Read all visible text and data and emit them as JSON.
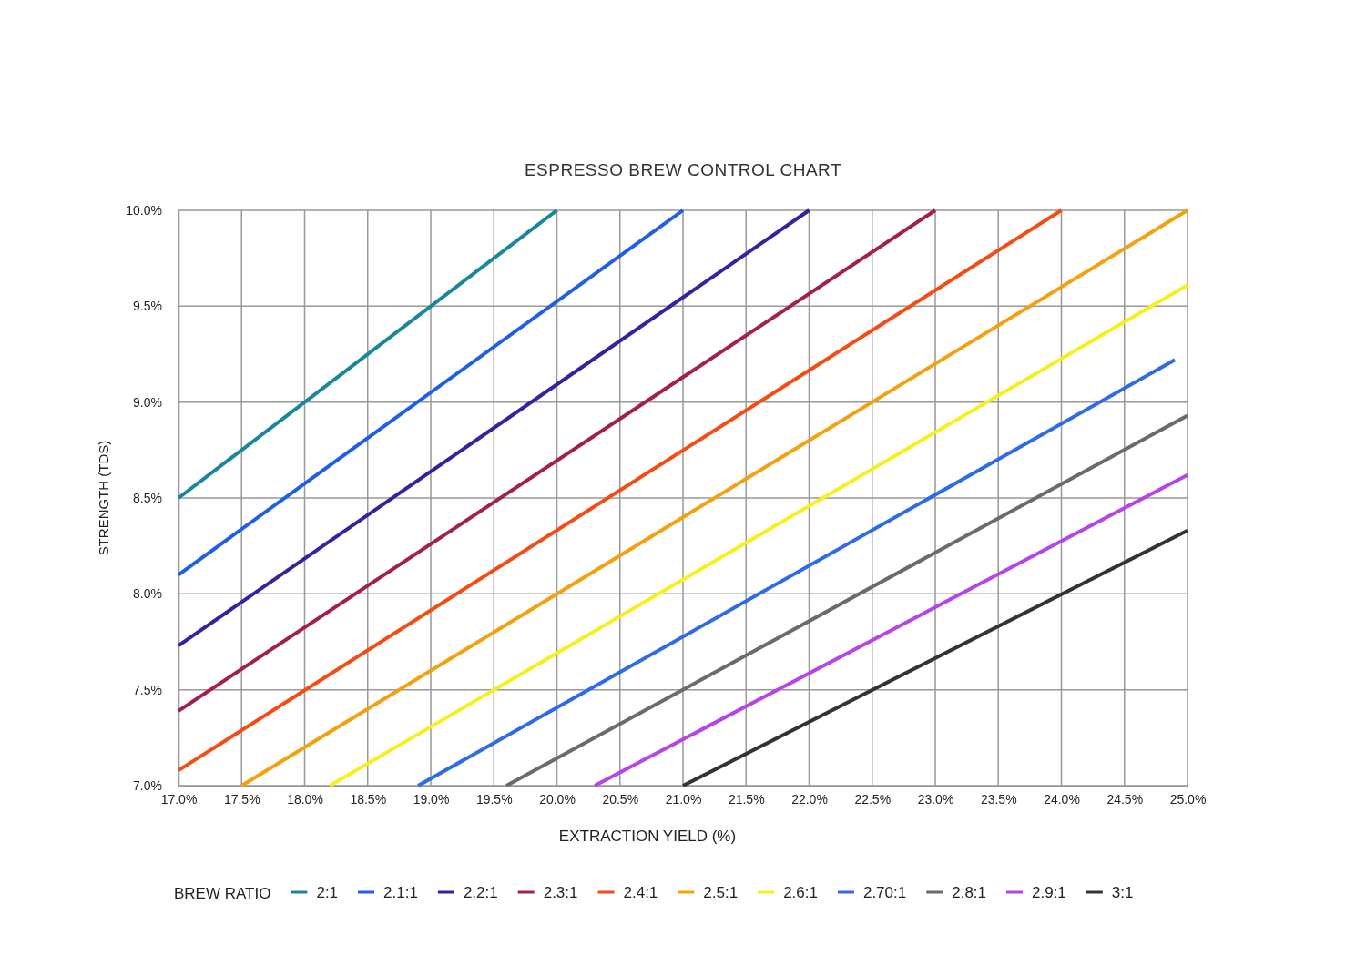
{
  "chart_data": {
    "type": "line",
    "title": "ESPRESSO BREW CONTROL CHART",
    "xlabel": "EXTRACTION YIELD (%)",
    "ylabel": "STRENGTH (TDS)",
    "legend_title": "BREW RATIO",
    "legend": "bottom",
    "grid": true,
    "marker": "none",
    "line_style": "solid",
    "xlim": [
      17,
      25
    ],
    "xticks": [
      {
        "value": 17,
        "label": "17.0%"
      },
      {
        "value": 17.5,
        "label": "17.5%"
      },
      {
        "value": 18,
        "label": "18.0%"
      },
      {
        "value": 18.5,
        "label": "18.5%"
      },
      {
        "value": 19,
        "label": "19.0%"
      },
      {
        "value": 19.5,
        "label": "19.5%"
      },
      {
        "value": 20,
        "label": "20.0%"
      },
      {
        "value": 20.5,
        "label": "20.5%"
      },
      {
        "value": 21,
        "label": "21.0%"
      },
      {
        "value": 21.5,
        "label": "21.5%"
      },
      {
        "value": 22,
        "label": "22.0%"
      },
      {
        "value": 22.5,
        "label": "22.5%"
      },
      {
        "value": 23,
        "label": "23.0%"
      },
      {
        "value": 23.5,
        "label": "23.5%"
      },
      {
        "value": 24,
        "label": "24.0%"
      },
      {
        "value": 24.5,
        "label": "24.5%"
      },
      {
        "value": 25,
        "label": "25.0%"
      }
    ],
    "ylim": [
      7,
      10
    ],
    "yticks": [
      {
        "value": 7,
        "label": "7.0%"
      },
      {
        "value": 7.5,
        "label": "7.5%"
      },
      {
        "value": 8,
        "label": "8.0%"
      },
      {
        "value": 8.5,
        "label": "8.5%"
      },
      {
        "value": 9,
        "label": "9.0%"
      },
      {
        "value": 9.5,
        "label": "9.5%"
      },
      {
        "value": 10,
        "label": "10.0%"
      }
    ],
    "series": [
      {
        "name": "2:1",
        "color": "#19879a",
        "x": [
          17,
          20
        ],
        "values": [
          8.5,
          10
        ]
      },
      {
        "name": "2.1:1",
        "color": "#1f5ee6",
        "x": [
          17,
          21
        ],
        "values": [
          8.1,
          10
        ]
      },
      {
        "name": "2.2:1",
        "color": "#3a1f9e",
        "x": [
          17,
          22
        ],
        "values": [
          7.73,
          10
        ]
      },
      {
        "name": "2.3:1",
        "color": "#a3204a",
        "x": [
          17,
          23
        ],
        "values": [
          7.39,
          10
        ]
      },
      {
        "name": "2.4:1",
        "color": "#f54b14",
        "x": [
          17,
          24
        ],
        "values": [
          7.08,
          10
        ]
      },
      {
        "name": "2.5:1",
        "color": "#f5a00f",
        "x": [
          17.5,
          25
        ],
        "values": [
          7,
          10
        ]
      },
      {
        "name": "2.6:1",
        "color": "#f5f01e",
        "x": [
          18.2,
          25
        ],
        "values": [
          7,
          9.61
        ]
      },
      {
        "name": "2.70:1",
        "color": "#2f6be6",
        "x": [
          18.9,
          24.9
        ],
        "values": [
          7,
          9.22
        ]
      },
      {
        "name": "2.8:1",
        "color": "#6b6b6b",
        "x": [
          19.6,
          25
        ],
        "values": [
          7,
          8.93
        ]
      },
      {
        "name": "2.9:1",
        "color": "#b545e6",
        "x": [
          20.3,
          25
        ],
        "values": [
          7,
          8.62
        ]
      },
      {
        "name": "3:1",
        "color": "#333333",
        "x": [
          21,
          25
        ],
        "values": [
          7,
          8.33
        ]
      }
    ]
  }
}
